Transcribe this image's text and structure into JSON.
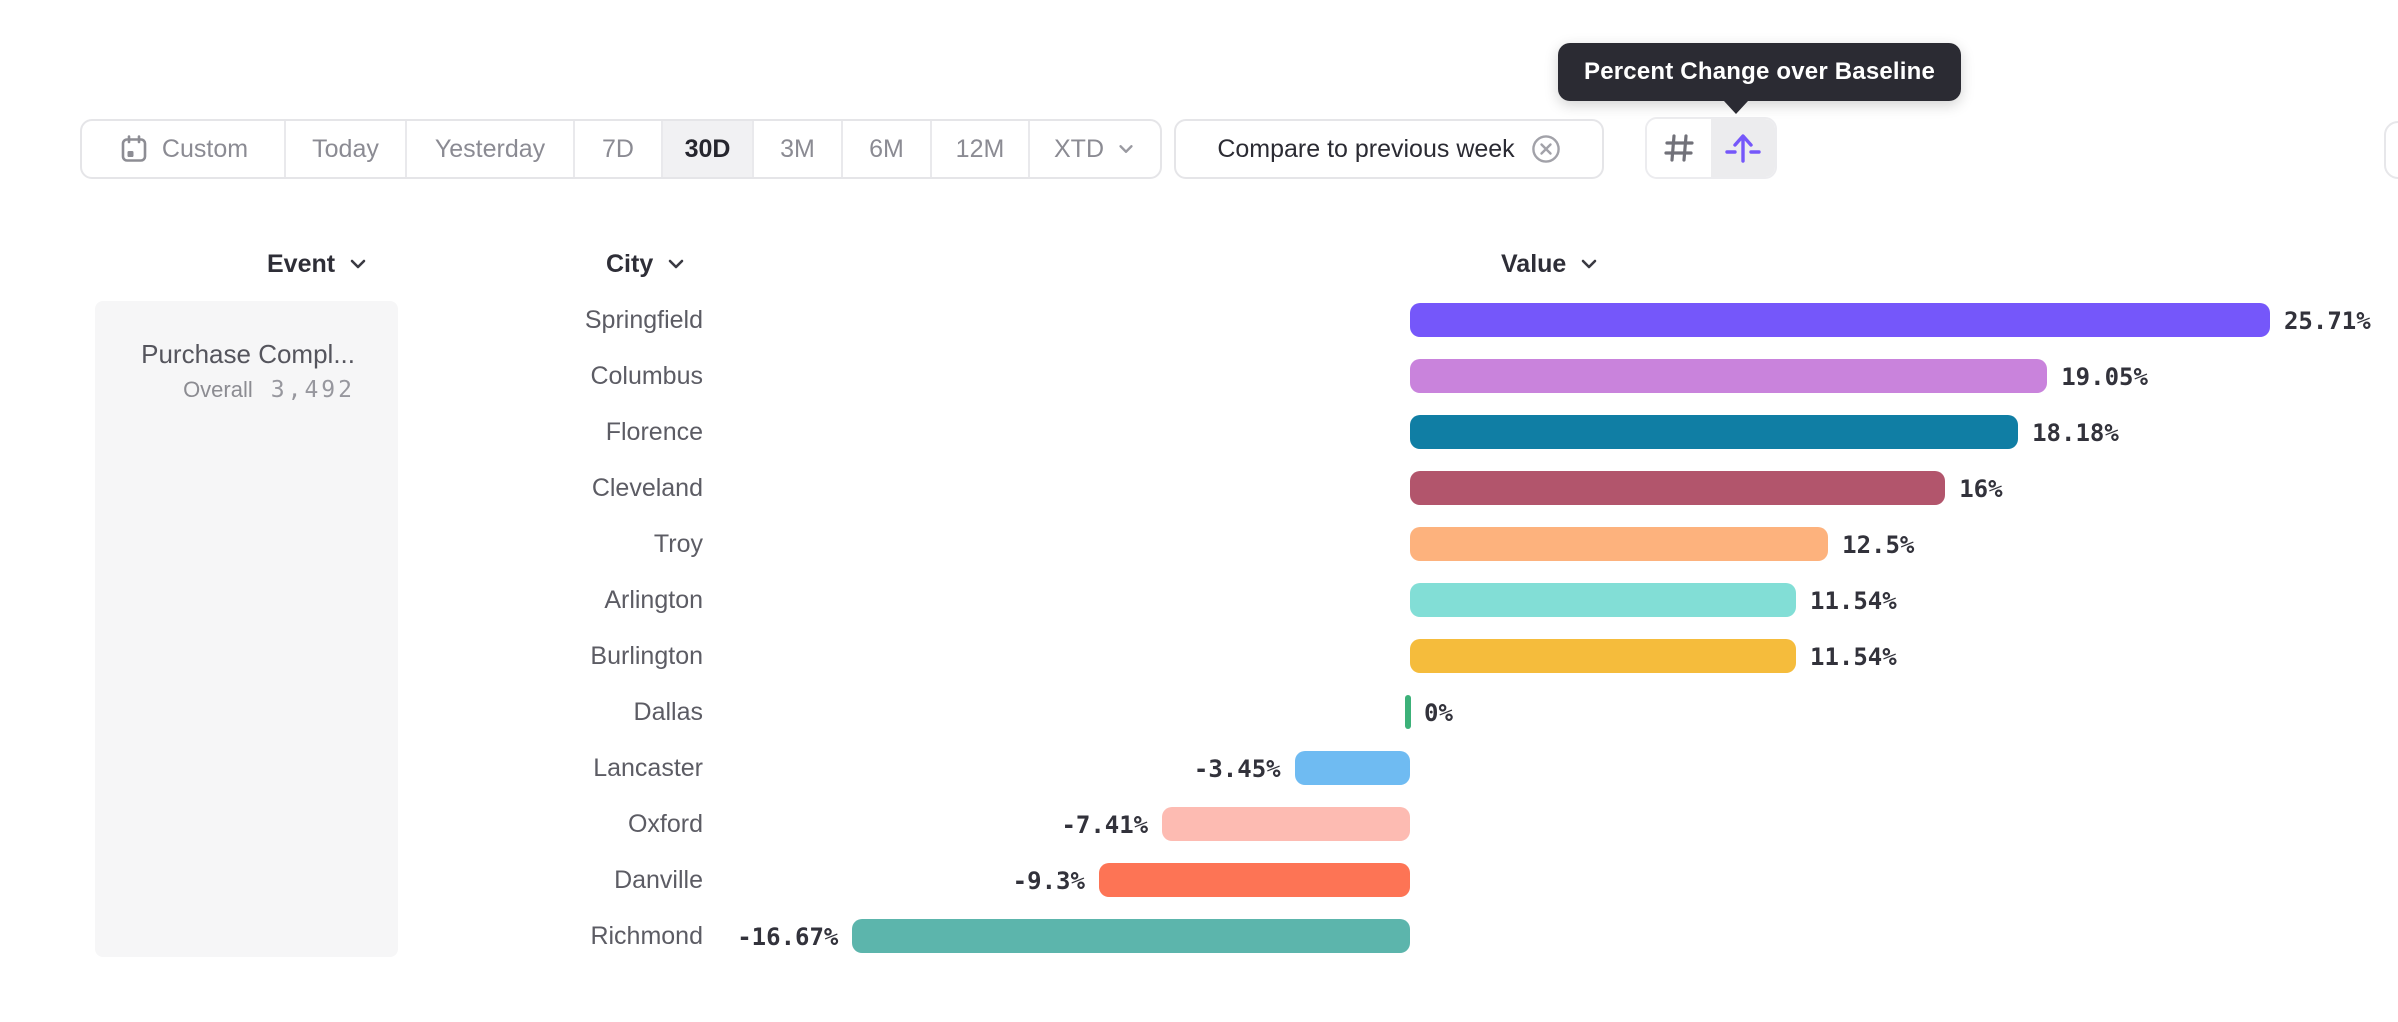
{
  "tooltip": {
    "text": "Percent Change over Baseline"
  },
  "toolbar": {
    "date_ranges": [
      {
        "label": "Custom",
        "icon": "calendar",
        "selected": false
      },
      {
        "label": "Today",
        "selected": false
      },
      {
        "label": "Yesterday",
        "selected": false
      },
      {
        "label": "7D",
        "selected": false
      },
      {
        "label": "30D",
        "selected": true
      },
      {
        "label": "3M",
        "selected": false
      },
      {
        "label": "6M",
        "selected": false
      },
      {
        "label": "12M",
        "selected": false
      },
      {
        "label": "XTD",
        "selected": false,
        "chevron": true
      }
    ],
    "compare": {
      "label": "Compare to previous week",
      "close_icon": "circle-x-icon"
    },
    "view_buttons": [
      {
        "name": "raw-values",
        "icon": "hash-icon",
        "active": false
      },
      {
        "name": "percent-change-over-baseline",
        "icon": "arrow-up-baseline-icon",
        "active": true,
        "accent": "#7557FA"
      }
    ]
  },
  "columns": {
    "event": "Event",
    "city": "City",
    "value": "Value"
  },
  "event_panel": {
    "title": "Purchase Compl...",
    "overall_label": "Overall",
    "overall_value": "3,492"
  },
  "chart_data": {
    "type": "bar",
    "orientation": "horizontal",
    "title": "Percent Change over Baseline",
    "value_unit": "%",
    "baseline": 0,
    "categories": [
      "Springfield",
      "Columbus",
      "Florence",
      "Cleveland",
      "Troy",
      "Arlington",
      "Burlington",
      "Dallas",
      "Lancaster",
      "Oxford",
      "Danville",
      "Richmond"
    ],
    "values": [
      25.71,
      19.05,
      18.18,
      16,
      12.5,
      11.54,
      11.54,
      0,
      -3.45,
      -7.41,
      -9.3,
      -16.67
    ],
    "labels": [
      "25.71%",
      "19.05%",
      "18.18%",
      "16%",
      "12.5%",
      "11.54%",
      "11.54%",
      "0%",
      "-3.45%",
      "-7.41%",
      "-9.3%",
      "-16.67%"
    ],
    "colors": [
      "#7557FA",
      "#C983DC",
      "#107EA4",
      "#B2556C",
      "#FDB27D",
      "#82DED6",
      "#F5BC3C",
      "#3CB179",
      "#6FBBF2",
      "#FDBBB2",
      "#FD7455",
      "#5CB5AC"
    ],
    "zero_bar_color": "#3CB179"
  }
}
